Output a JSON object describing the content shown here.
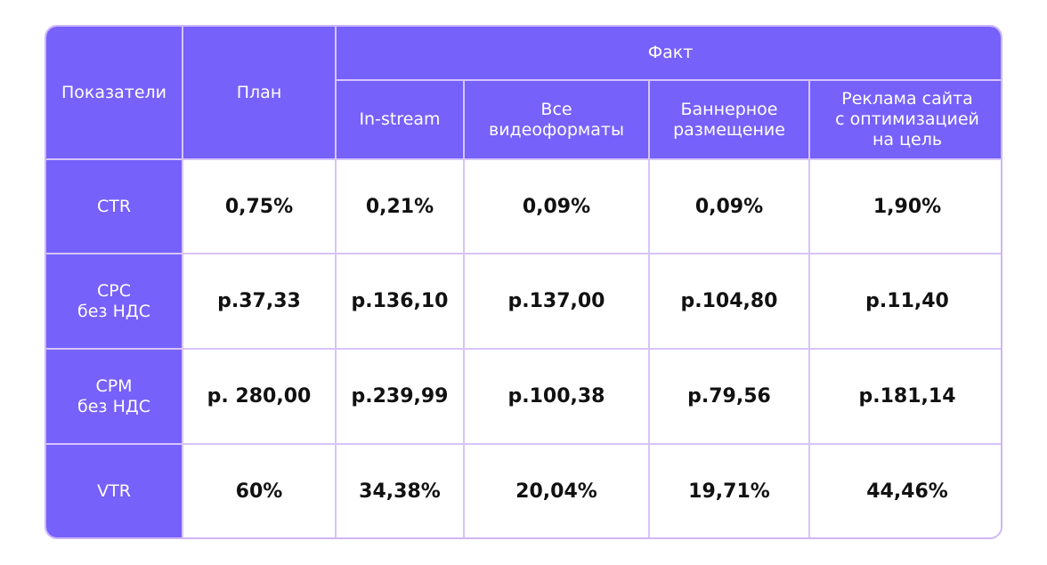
{
  "table": {
    "header": {
      "indicators": "Показатели",
      "plan": "План",
      "fact": "Факт",
      "fact_columns": [
        [
          "In-stream"
        ],
        [
          "Все",
          "видеоформаты"
        ],
        [
          "Баннерное",
          "размещение"
        ],
        [
          "Реклама сайта",
          "с оптимизацией",
          "на цель"
        ]
      ]
    },
    "rows": [
      {
        "label": [
          "CTR"
        ],
        "plan": "0,75%",
        "values": [
          "0,21%",
          "0,09%",
          "0,09%",
          "1,90%"
        ]
      },
      {
        "label": [
          "CPC",
          "без НДС"
        ],
        "plan": "р.37,33",
        "values": [
          "р.136,10",
          "р.137,00",
          "р.104,80",
          "р.11,40"
        ]
      },
      {
        "label": [
          "CPM",
          "без НДС"
        ],
        "plan": "р. 280,00",
        "values": [
          "р.239,99",
          "р.100,38",
          "р.79,56",
          "р.181,14"
        ]
      },
      {
        "label": [
          "VTR"
        ],
        "plan": "60%",
        "values": [
          "34,38%",
          "20,04%",
          "19,71%",
          "44,46%"
        ]
      }
    ],
    "colors": {
      "header_bg": "#7661fb",
      "grid": "#d7c4fa",
      "value_text": "#111111"
    }
  }
}
